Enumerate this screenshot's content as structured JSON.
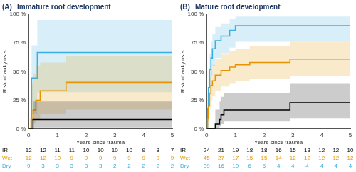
{
  "chart_data": [
    {
      "type": "step",
      "panel": "(A)",
      "title": "Immature root development",
      "x_label": "Years since trauma",
      "y_label": "Risk of ankylosis",
      "xlim": [
        0,
        5
      ],
      "xticks": [
        0,
        1,
        2,
        3,
        4,
        5
      ],
      "ylim": [
        0,
        100
      ],
      "yticks": [
        {
          "value": 0,
          "label": "0 %"
        },
        {
          "value": 25,
          "label": "25 %"
        },
        {
          "value": 50,
          "label": "50 %"
        },
        {
          "value": 75,
          "label": "75 %"
        },
        {
          "value": 100,
          "label": "100 %"
        }
      ],
      "grid": false,
      "series": [
        {
          "name": "IR",
          "color": "#000000",
          "x": [
            0,
            0.15,
            5
          ],
          "values": [
            0,
            8.3,
            8.3
          ],
          "lower": [
            0,
            1.2,
            1.2
          ],
          "upper": [
            0,
            24,
            24
          ]
        },
        {
          "name": "Wet",
          "color": "#e69500",
          "x": [
            0,
            0.08,
            0.15,
            0.25,
            0.4,
            1.3,
            5
          ],
          "values": [
            0,
            8.3,
            16.7,
            25,
            33.3,
            40.7,
            40.7
          ],
          "lower": [
            0,
            1.2,
            4.5,
            8.5,
            13,
            17,
            17
          ],
          "upper": [
            0,
            40,
            48,
            55,
            58,
            64,
            64
          ]
        },
        {
          "name": "Dry",
          "color": "#3aaee0",
          "x": [
            0,
            0.1,
            0.3,
            5
          ],
          "values": [
            0,
            44.4,
            66.7,
            66.7
          ],
          "lower": [
            0,
            13,
            32,
            32
          ],
          "upper": [
            0,
            73,
            95,
            95
          ]
        }
      ],
      "risk_table": {
        "x": [
          0,
          0.5,
          1,
          1.5,
          2,
          2.5,
          3,
          3.5,
          4,
          4.5,
          5
        ],
        "rows": [
          {
            "name": "IR",
            "values": [
              12,
              12,
              11,
              11,
              10,
              10,
              10,
              10,
              9,
              8,
              7
            ]
          },
          {
            "name": "Wet",
            "values": [
              12,
              12,
              10,
              9,
              9,
              9,
              9,
              9,
              9,
              9,
              9
            ]
          },
          {
            "name": "Dry",
            "values": [
              9,
              3,
              3,
              3,
              3,
              3,
              2,
              2,
              2,
              2,
              2
            ]
          }
        ]
      }
    },
    {
      "type": "step",
      "panel": "(B)",
      "title": "Mature root development",
      "x_label": "Years since trauma",
      "y_label": "Risk of ankylosis",
      "xlim": [
        0,
        5
      ],
      "xticks": [
        0,
        1,
        2,
        3,
        4,
        5
      ],
      "ylim": [
        0,
        100
      ],
      "yticks": [
        {
          "value": 0,
          "label": "0 %"
        },
        {
          "value": 25,
          "label": "25 %"
        },
        {
          "value": 50,
          "label": "50 %"
        },
        {
          "value": 75,
          "label": "75 %"
        },
        {
          "value": 100,
          "label": "100 %"
        }
      ],
      "grid": false,
      "series": [
        {
          "name": "IR",
          "color": "#000000",
          "x": [
            0,
            0.3,
            0.45,
            0.5,
            0.6,
            2.9,
            5
          ],
          "values": [
            0,
            4.2,
            8.3,
            12.5,
            16.7,
            22.9,
            22.9
          ],
          "lower": [
            0,
            0.6,
            2.2,
            4.2,
            6.5,
            9,
            9
          ],
          "upper": [
            0,
            17,
            24,
            28,
            31,
            40,
            40
          ]
        },
        {
          "name": "Wet",
          "color": "#e69500",
          "x": [
            0,
            0.03,
            0.06,
            0.1,
            0.15,
            0.2,
            0.3,
            0.5,
            0.8,
            1,
            1.5,
            2.9,
            5
          ],
          "values": [
            0,
            8.9,
            20,
            31,
            38,
            42,
            47,
            51,
            54,
            56,
            58,
            61,
            61
          ],
          "lower": [
            0,
            2.5,
            10,
            19,
            25,
            29,
            33,
            37,
            40,
            42,
            44,
            46,
            46
          ],
          "upper": [
            0,
            19,
            33,
            45,
            52,
            56,
            61,
            65,
            68,
            70,
            72,
            76,
            76
          ]
        },
        {
          "name": "Dry",
          "color": "#3aaee0",
          "x": [
            0,
            0.03,
            0.06,
            0.1,
            0.15,
            0.2,
            0.3,
            0.5,
            0.8,
            1,
            5
          ],
          "values": [
            0,
            18,
            36,
            52,
            62,
            70,
            77,
            81,
            86,
            90,
            90
          ],
          "lower": [
            0,
            7,
            22,
            36,
            46,
            55,
            62,
            66,
            71,
            76,
            76
          ],
          "upper": [
            0,
            30,
            50,
            66,
            76,
            83,
            89,
            92,
            96,
            98,
            98
          ]
        }
      ],
      "risk_table": {
        "x": [
          0,
          0.5,
          1,
          1.5,
          2,
          2.5,
          3,
          3.5,
          4,
          4.5,
          5
        ],
        "rows": [
          {
            "name": "IR",
            "values": [
              24,
              21,
              19,
              18,
              18,
              16,
              15,
              13,
              12,
              12,
              10
            ]
          },
          {
            "name": "Wet",
            "values": [
              45,
              27,
              17,
              15,
              15,
              14,
              12,
              12,
              12,
              12,
              12
            ]
          },
          {
            "name": "Dry",
            "values": [
              39,
              16,
              10,
              6,
              5,
              4,
              4,
              4,
              4,
              4,
              4
            ]
          }
        ]
      }
    }
  ]
}
